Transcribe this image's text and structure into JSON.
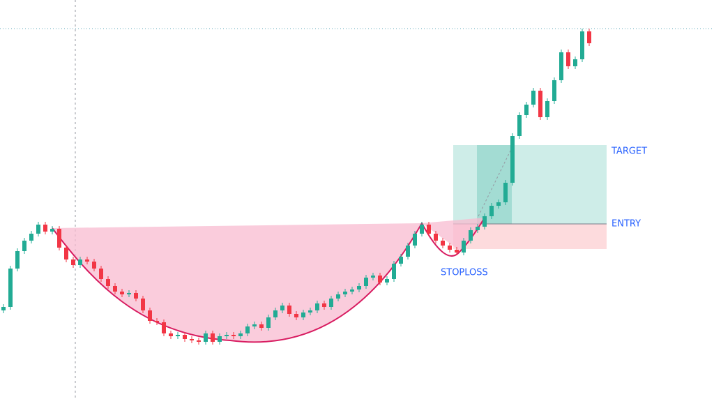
{
  "chart_data": {
    "type": "candlestick",
    "up_color": "#22ab94",
    "down_color": "#f23645",
    "ylim": [
      0,
      572
    ],
    "open": [
      127,
      132,
      187,
      212,
      227,
      237,
      250,
      240,
      244,
      217,
      200,
      192,
      200,
      197,
      187,
      172,
      162,
      154,
      150,
      152,
      144,
      127,
      112,
      110,
      94,
      90,
      92,
      86,
      84,
      82,
      94,
      82,
      90,
      92,
      90,
      94,
      104,
      107,
      102,
      117,
      127,
      134,
      122,
      117,
      124,
      127,
      137,
      132,
      144,
      150,
      154,
      157,
      162,
      174,
      177,
      167,
      172,
      194,
      204,
      220,
      237,
      250,
      237,
      227,
      220,
      214,
      210,
      227,
      242,
      247,
      262,
      277,
      282,
      310,
      377,
      407,
      422,
      442,
      404,
      427,
      457,
      497,
      477,
      487,
      527
    ],
    "high": [
      136,
      191,
      216,
      231,
      241,
      254,
      254,
      248,
      248,
      221,
      204,
      204,
      204,
      201,
      191,
      176,
      166,
      158,
      156,
      156,
      148,
      131,
      116,
      114,
      98,
      96,
      96,
      90,
      88,
      98,
      98,
      94,
      96,
      96,
      98,
      108,
      111,
      111,
      121,
      131,
      138,
      138,
      126,
      128,
      131,
      141,
      141,
      148,
      154,
      158,
      161,
      166,
      178,
      181,
      181,
      176,
      198,
      208,
      224,
      241,
      254,
      254,
      241,
      231,
      224,
      218,
      231,
      246,
      251,
      266,
      281,
      286,
      314,
      381,
      411,
      426,
      446,
      446,
      431,
      461,
      501,
      501,
      491,
      531,
      531
    ],
    "low": [
      123,
      128,
      183,
      208,
      223,
      233,
      236,
      236,
      213,
      196,
      188,
      188,
      193,
      183,
      168,
      158,
      150,
      146,
      146,
      140,
      123,
      108,
      106,
      90,
      86,
      86,
      82,
      80,
      78,
      78,
      78,
      78,
      86,
      86,
      86,
      90,
      100,
      98,
      98,
      113,
      123,
      118,
      113,
      113,
      120,
      123,
      128,
      128,
      140,
      146,
      150,
      153,
      158,
      170,
      163,
      163,
      168,
      190,
      200,
      216,
      233,
      233,
      223,
      216,
      210,
      206,
      206,
      223,
      238,
      243,
      258,
      273,
      278,
      306,
      373,
      403,
      418,
      400,
      400,
      423,
      453,
      473,
      473,
      483,
      506
    ],
    "close": [
      132,
      187,
      212,
      227,
      237,
      250,
      240,
      244,
      217,
      200,
      192,
      200,
      197,
      187,
      172,
      162,
      154,
      150,
      152,
      144,
      127,
      112,
      110,
      94,
      90,
      92,
      86,
      84,
      82,
      94,
      82,
      90,
      92,
      90,
      94,
      104,
      107,
      102,
      117,
      127,
      134,
      122,
      117,
      124,
      127,
      137,
      132,
      144,
      150,
      154,
      157,
      162,
      174,
      177,
      167,
      172,
      194,
      204,
      220,
      237,
      250,
      237,
      227,
      220,
      214,
      210,
      227,
      242,
      247,
      262,
      277,
      282,
      310,
      377,
      407,
      422,
      442,
      404,
      427,
      457,
      497,
      477,
      487,
      527,
      510
    ],
    "levels": [
      {
        "label": "TARGET",
        "value": 364,
        "color": "#22ab94"
      },
      {
        "label": "ENTRY",
        "value": 251,
        "color": "#787b86"
      },
      {
        "label": "STOPLOSS",
        "value": 215,
        "color": "#f23645"
      }
    ]
  }
}
